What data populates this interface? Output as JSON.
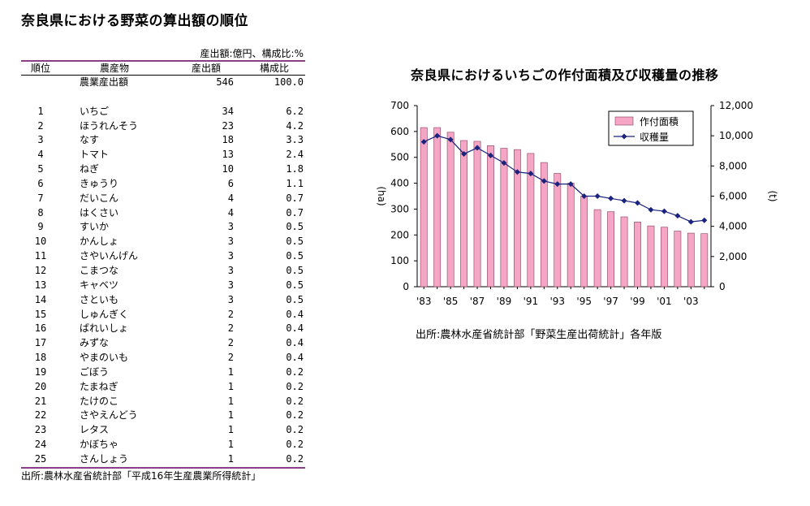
{
  "title": "奈良県における野菜の算出額の順位",
  "table": {
    "unit_note": "産出額:億円、構成比:%",
    "headers": {
      "rank": "順位",
      "crop": "農産物",
      "value": "産出額",
      "share": "構成比"
    },
    "total": {
      "crop": "農業産出額",
      "value": "546",
      "share": "100.0"
    },
    "rows": [
      {
        "rank": "1",
        "crop": "いちご",
        "value": "34",
        "share": "6.2"
      },
      {
        "rank": "2",
        "crop": "ほうれんそう",
        "value": "23",
        "share": "4.2"
      },
      {
        "rank": "3",
        "crop": "なす",
        "value": "18",
        "share": "3.3"
      },
      {
        "rank": "4",
        "crop": "トマト",
        "value": "13",
        "share": "2.4"
      },
      {
        "rank": "5",
        "crop": "ねぎ",
        "value": "10",
        "share": "1.8"
      },
      {
        "rank": "6",
        "crop": "きゅうり",
        "value": "6",
        "share": "1.1"
      },
      {
        "rank": "7",
        "crop": "だいこん",
        "value": "4",
        "share": "0.7"
      },
      {
        "rank": "8",
        "crop": "はくさい",
        "value": "4",
        "share": "0.7"
      },
      {
        "rank": "9",
        "crop": "すいか",
        "value": "3",
        "share": "0.5"
      },
      {
        "rank": "10",
        "crop": "かんしょ",
        "value": "3",
        "share": "0.5"
      },
      {
        "rank": "11",
        "crop": "さやいんげん",
        "value": "3",
        "share": "0.5"
      },
      {
        "rank": "12",
        "crop": "こまつな",
        "value": "3",
        "share": "0.5"
      },
      {
        "rank": "13",
        "crop": "キャベツ",
        "value": "3",
        "share": "0.5"
      },
      {
        "rank": "14",
        "crop": "さといも",
        "value": "3",
        "share": "0.5"
      },
      {
        "rank": "15",
        "crop": "しゅんぎく",
        "value": "2",
        "share": "0.4"
      },
      {
        "rank": "16",
        "crop": "ばれいしょ",
        "value": "2",
        "share": "0.4"
      },
      {
        "rank": "17",
        "crop": "みずな",
        "value": "2",
        "share": "0.4"
      },
      {
        "rank": "18",
        "crop": "やまのいも",
        "value": "2",
        "share": "0.4"
      },
      {
        "rank": "19",
        "crop": "ごぼう",
        "value": "1",
        "share": "0.2"
      },
      {
        "rank": "20",
        "crop": "たまねぎ",
        "value": "1",
        "share": "0.2"
      },
      {
        "rank": "21",
        "crop": "たけのこ",
        "value": "1",
        "share": "0.2"
      },
      {
        "rank": "22",
        "crop": "さやえんどう",
        "value": "1",
        "share": "0.2"
      },
      {
        "rank": "23",
        "crop": "レタス",
        "value": "1",
        "share": "0.2"
      },
      {
        "rank": "24",
        "crop": "かぼちゃ",
        "value": "1",
        "share": "0.2"
      },
      {
        "rank": "25",
        "crop": "さんしょう",
        "value": "1",
        "share": "0.2"
      }
    ],
    "source": "出所:農林水産省統計部「平成16年生産農業所得統計」"
  },
  "chart_data": {
    "type": "bar",
    "title": "奈良県におけるいちごの作付面積及び収穫量の推移",
    "x": [
      "'83",
      "'84",
      "'85",
      "'86",
      "'87",
      "'88",
      "'89",
      "'90",
      "'91",
      "'92",
      "'93",
      "'94",
      "'95",
      "'96",
      "'97",
      "'98",
      "'99",
      "'00",
      "'01",
      "'02",
      "'03",
      "'04"
    ],
    "x_tick_labels": [
      "'83",
      "'85",
      "'87",
      "'89",
      "'91",
      "'93",
      "'95",
      "'97",
      "'99",
      "'01",
      "'03"
    ],
    "series": [
      {
        "name": "作付面積",
        "type": "bar",
        "axis": "left",
        "color": "#f4a6c4",
        "values": [
          615,
          615,
          597,
          565,
          562,
          545,
          535,
          530,
          515,
          480,
          438,
          400,
          350,
          298,
          290,
          270,
          250,
          235,
          230,
          215,
          207,
          205
        ]
      },
      {
        "name": "収穫量",
        "type": "line",
        "axis": "right",
        "color": "#1a237e",
        "values": [
          9600,
          10000,
          9750,
          8800,
          9200,
          8700,
          8200,
          7600,
          7500,
          7000,
          6800,
          6800,
          6000,
          6000,
          5850,
          5700,
          5550,
          5100,
          5000,
          4700,
          4300,
          4400
        ]
      }
    ],
    "y_left": {
      "label": "(ha)",
      "lim": [
        0,
        700
      ],
      "ticks": [
        "0",
        "100",
        "200",
        "300",
        "400",
        "500",
        "600",
        "700"
      ]
    },
    "y_right": {
      "label": "(t)",
      "lim": [
        0,
        12000
      ],
      "ticks": [
        "0",
        "2,000",
        "4,000",
        "6,000",
        "8,000",
        "10,000",
        "12,000"
      ]
    },
    "legend": "top-right",
    "grid": false,
    "source": "出所:農林水産省統計部「野菜生産出荷統計」各年版"
  }
}
